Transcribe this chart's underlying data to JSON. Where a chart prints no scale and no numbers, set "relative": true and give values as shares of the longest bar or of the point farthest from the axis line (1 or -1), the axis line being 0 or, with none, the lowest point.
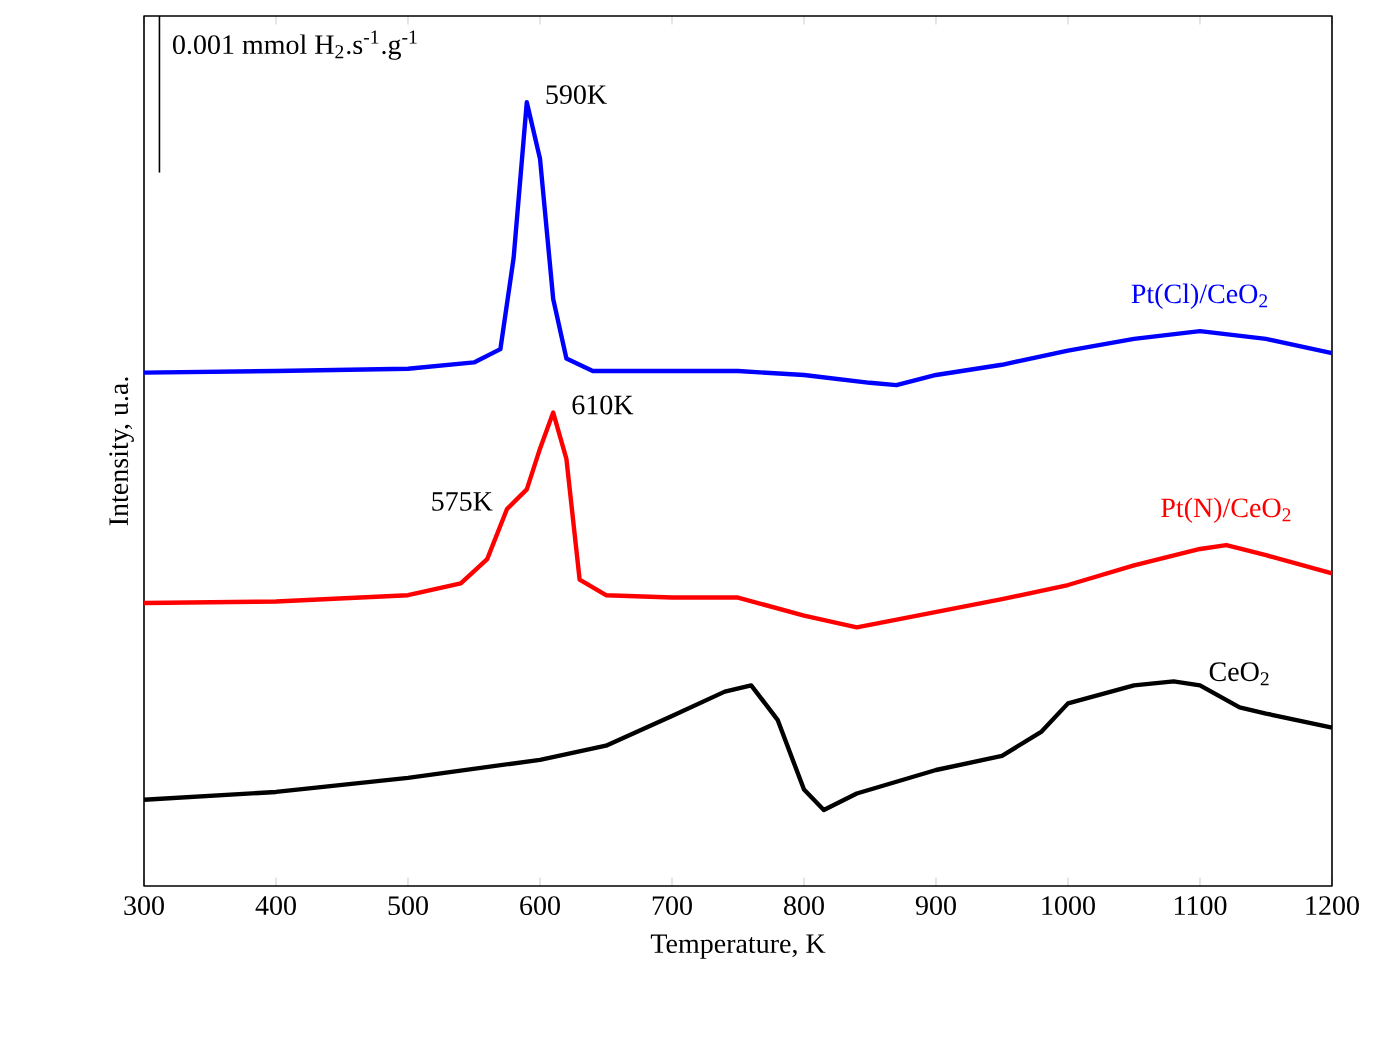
{
  "chart_data": {
    "type": "line",
    "relative": true,
    "xlabel": "Temperature, K",
    "ylabel": "Intensity, u.a.",
    "xlim": [
      300,
      1200
    ],
    "xticks": [
      300,
      400,
      500,
      600,
      700,
      800,
      900,
      1000,
      1100,
      1200
    ],
    "x": [
      300,
      400,
      500,
      550,
      570,
      580,
      590,
      600,
      610,
      620,
      640,
      700,
      750,
      800,
      850,
      870,
      900,
      950,
      1000,
      1050,
      1100,
      1150,
      1200
    ],
    "series": [
      {
        "name": "Pt(Cl)/CeO$_{2}$",
        "color": "#0000ff",
        "values": [
          0.655,
          0.657,
          0.66,
          0.668,
          0.685,
          0.801,
          1,
          0.928,
          0.749,
          0.673,
          0.657,
          0.657,
          0.657,
          0.652,
          0.642,
          0.639,
          0.652,
          0.665,
          0.683,
          0.698,
          0.708,
          0.698,
          0.68
        ]
      },
      {
        "name": "Pt(N)/CeO$_{2}$",
        "color": "#ff0000",
        "x": [
          300,
          400,
          500,
          540,
          560,
          575,
          590,
          600,
          610,
          620,
          630,
          650,
          700,
          750,
          800,
          840,
          880,
          950,
          1000,
          1050,
          1100,
          1120,
          1150,
          1200
        ],
        "values": [
          0.361,
          0.363,
          0.371,
          0.386,
          0.417,
          0.481,
          0.506,
          0.558,
          0.604,
          0.545,
          0.391,
          0.371,
          0.368,
          0.368,
          0.345,
          0.33,
          0.343,
          0.366,
          0.384,
          0.409,
          0.43,
          0.435,
          0.422,
          0.399
        ]
      },
      {
        "name": "CeO$_{2}$",
        "color": "#000000",
        "x": [
          300,
          400,
          500,
          600,
          650,
          700,
          740,
          760,
          780,
          800,
          815,
          840,
          900,
          950,
          980,
          1000,
          1050,
          1080,
          1100,
          1130,
          1150,
          1200
        ],
        "values": [
          0.11,
          0.12,
          0.138,
          0.161,
          0.179,
          0.217,
          0.248,
          0.256,
          0.212,
          0.123,
          0.097,
          0.118,
          0.148,
          0.166,
          0.197,
          0.233,
          0.256,
          0.261,
          0.256,
          0.228,
          0.22,
          0.202
        ]
      }
    ],
    "annotations": [
      "0.001 mmol H$_{2}$.s$^{-1}$.g$^{-1}$",
      {
        "text": "590K",
        "x": 590,
        "y": 1
      },
      {
        "text": "575K",
        "x": 575,
        "y": 0.481
      },
      {
        "text": "610K",
        "x": 610,
        "y": 0.604
      }
    ],
    "marker": "none",
    "line_style": "solid"
  }
}
